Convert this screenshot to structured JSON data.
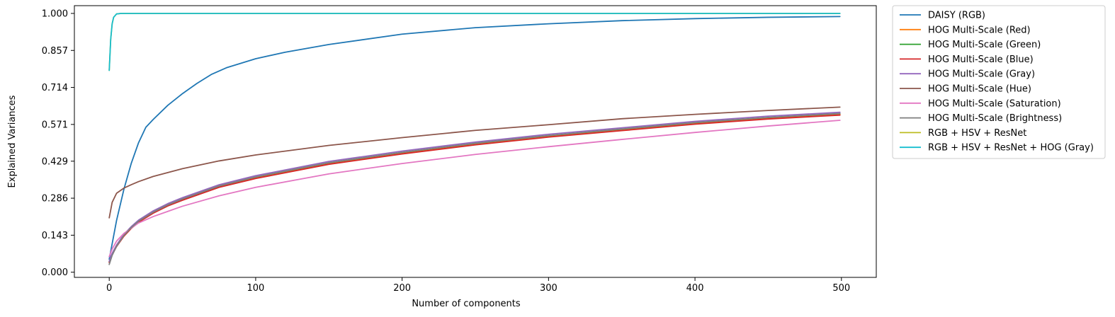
{
  "chart_data": {
    "type": "line",
    "title": "",
    "xlabel": "Number of components",
    "ylabel": "Explained Variances",
    "xlim": [
      -23.8,
      523.8
    ],
    "ylim": [
      -0.02,
      1.03
    ],
    "xticks": [
      0,
      100,
      200,
      300,
      400,
      500
    ],
    "yticks": [
      0.0,
      0.143,
      0.286,
      0.429,
      0.571,
      0.714,
      0.857,
      1.0
    ],
    "ytick_labels": [
      "0.000",
      "0.143",
      "0.286",
      "0.429",
      "0.571",
      "0.714",
      "0.857",
      "1.000"
    ],
    "grid": false,
    "legend_position": "outside-right-top",
    "series": [
      {
        "name": "DAISY (RGB)",
        "color": "#1f77b4",
        "points": [
          [
            0,
            0.05
          ],
          [
            5,
            0.2
          ],
          [
            10,
            0.32
          ],
          [
            15,
            0.42
          ],
          [
            20,
            0.5
          ],
          [
            25,
            0.56
          ],
          [
            30,
            0.59
          ],
          [
            40,
            0.645
          ],
          [
            50,
            0.69
          ],
          [
            60,
            0.73
          ],
          [
            70,
            0.765
          ],
          [
            80,
            0.79
          ],
          [
            100,
            0.825
          ],
          [
            120,
            0.85
          ],
          [
            150,
            0.88
          ],
          [
            200,
            0.92
          ],
          [
            250,
            0.945
          ],
          [
            300,
            0.96
          ],
          [
            350,
            0.972
          ],
          [
            400,
            0.98
          ],
          [
            450,
            0.985
          ],
          [
            499,
            0.988
          ]
        ]
      },
      {
        "name": "HOG Multi-Scale (Red)",
        "color": "#ff7f0e",
        "points": [
          [
            0,
            0.04
          ],
          [
            2,
            0.07
          ],
          [
            5,
            0.1
          ],
          [
            10,
            0.14
          ],
          [
            15,
            0.17
          ],
          [
            20,
            0.195
          ],
          [
            30,
            0.23
          ],
          [
            40,
            0.258
          ],
          [
            50,
            0.28
          ],
          [
            75,
            0.33
          ],
          [
            100,
            0.365
          ],
          [
            150,
            0.42
          ],
          [
            200,
            0.46
          ],
          [
            250,
            0.495
          ],
          [
            300,
            0.525
          ],
          [
            350,
            0.55
          ],
          [
            400,
            0.575
          ],
          [
            450,
            0.595
          ],
          [
            499,
            0.61
          ]
        ]
      },
      {
        "name": "HOG Multi-Scale (Green)",
        "color": "#2ca02c",
        "points": [
          [
            0,
            0.04
          ],
          [
            2,
            0.07
          ],
          [
            5,
            0.102
          ],
          [
            10,
            0.142
          ],
          [
            15,
            0.172
          ],
          [
            20,
            0.197
          ],
          [
            30,
            0.232
          ],
          [
            40,
            0.26
          ],
          [
            50,
            0.283
          ],
          [
            75,
            0.333
          ],
          [
            100,
            0.368
          ],
          [
            150,
            0.423
          ],
          [
            200,
            0.463
          ],
          [
            250,
            0.498
          ],
          [
            300,
            0.528
          ],
          [
            350,
            0.553
          ],
          [
            400,
            0.578
          ],
          [
            450,
            0.598
          ],
          [
            499,
            0.613
          ]
        ]
      },
      {
        "name": "HOG Multi-Scale (Blue)",
        "color": "#d62728",
        "points": [
          [
            0,
            0.038
          ],
          [
            2,
            0.068
          ],
          [
            5,
            0.099
          ],
          [
            10,
            0.139
          ],
          [
            15,
            0.169
          ],
          [
            20,
            0.193
          ],
          [
            30,
            0.228
          ],
          [
            40,
            0.256
          ],
          [
            50,
            0.278
          ],
          [
            75,
            0.328
          ],
          [
            100,
            0.362
          ],
          [
            150,
            0.417
          ],
          [
            200,
            0.457
          ],
          [
            250,
            0.492
          ],
          [
            300,
            0.522
          ],
          [
            350,
            0.547
          ],
          [
            400,
            0.572
          ],
          [
            450,
            0.592
          ],
          [
            499,
            0.607
          ]
        ]
      },
      {
        "name": "HOG Multi-Scale (Gray)",
        "color": "#9467bd",
        "points": [
          [
            0,
            0.042
          ],
          [
            2,
            0.073
          ],
          [
            5,
            0.105
          ],
          [
            10,
            0.146
          ],
          [
            15,
            0.176
          ],
          [
            20,
            0.201
          ],
          [
            30,
            0.237
          ],
          [
            40,
            0.265
          ],
          [
            50,
            0.288
          ],
          [
            75,
            0.338
          ],
          [
            100,
            0.373
          ],
          [
            150,
            0.428
          ],
          [
            200,
            0.468
          ],
          [
            250,
            0.503
          ],
          [
            300,
            0.533
          ],
          [
            350,
            0.558
          ],
          [
            400,
            0.583
          ],
          [
            450,
            0.603
          ],
          [
            499,
            0.618
          ]
        ]
      },
      {
        "name": "HOG Multi-Scale (Hue)",
        "color": "#8c564b",
        "points": [
          [
            0,
            0.21
          ],
          [
            2,
            0.27
          ],
          [
            5,
            0.305
          ],
          [
            10,
            0.325
          ],
          [
            15,
            0.338
          ],
          [
            20,
            0.35
          ],
          [
            30,
            0.37
          ],
          [
            40,
            0.385
          ],
          [
            50,
            0.4
          ],
          [
            75,
            0.43
          ],
          [
            100,
            0.453
          ],
          [
            150,
            0.49
          ],
          [
            200,
            0.52
          ],
          [
            250,
            0.548
          ],
          [
            300,
            0.57
          ],
          [
            350,
            0.593
          ],
          [
            400,
            0.61
          ],
          [
            450,
            0.625
          ],
          [
            499,
            0.638
          ]
        ]
      },
      {
        "name": "HOG Multi-Scale (Saturation)",
        "color": "#e377c2",
        "points": [
          [
            0,
            0.06
          ],
          [
            2,
            0.09
          ],
          [
            5,
            0.12
          ],
          [
            10,
            0.15
          ],
          [
            15,
            0.17
          ],
          [
            20,
            0.19
          ],
          [
            30,
            0.215
          ],
          [
            40,
            0.235
          ],
          [
            50,
            0.255
          ],
          [
            75,
            0.295
          ],
          [
            100,
            0.328
          ],
          [
            150,
            0.38
          ],
          [
            200,
            0.42
          ],
          [
            250,
            0.455
          ],
          [
            300,
            0.485
          ],
          [
            350,
            0.513
          ],
          [
            400,
            0.54
          ],
          [
            450,
            0.565
          ],
          [
            499,
            0.587
          ]
        ]
      },
      {
        "name": "HOG Multi-Scale (Brightness)",
        "color": "#7f7f7f",
        "points": [
          [
            0,
            0.03
          ],
          [
            2,
            0.065
          ],
          [
            5,
            0.1
          ],
          [
            10,
            0.142
          ],
          [
            15,
            0.172
          ],
          [
            20,
            0.197
          ],
          [
            30,
            0.232
          ],
          [
            40,
            0.26
          ],
          [
            50,
            0.283
          ],
          [
            75,
            0.333
          ],
          [
            100,
            0.368
          ],
          [
            150,
            0.423
          ],
          [
            200,
            0.463
          ],
          [
            250,
            0.498
          ],
          [
            300,
            0.528
          ],
          [
            350,
            0.553
          ],
          [
            400,
            0.578
          ],
          [
            450,
            0.598
          ],
          [
            499,
            0.613
          ]
        ]
      },
      {
        "name": "RGB + HSV + ResNet",
        "color": "#bcbd22",
        "points": [
          [
            0,
            0.78
          ],
          [
            1,
            0.9
          ],
          [
            2,
            0.96
          ],
          [
            3,
            0.985
          ],
          [
            5,
            0.998
          ],
          [
            8,
            1.0
          ],
          [
            499,
            1.0
          ]
        ]
      },
      {
        "name": "RGB + HSV + ResNet + HOG (Gray)",
        "color": "#17becf",
        "points": [
          [
            0,
            0.78
          ],
          [
            1,
            0.9
          ],
          [
            2,
            0.96
          ],
          [
            3,
            0.985
          ],
          [
            5,
            0.998
          ],
          [
            8,
            1.0
          ],
          [
            499,
            1.0
          ]
        ]
      }
    ]
  }
}
